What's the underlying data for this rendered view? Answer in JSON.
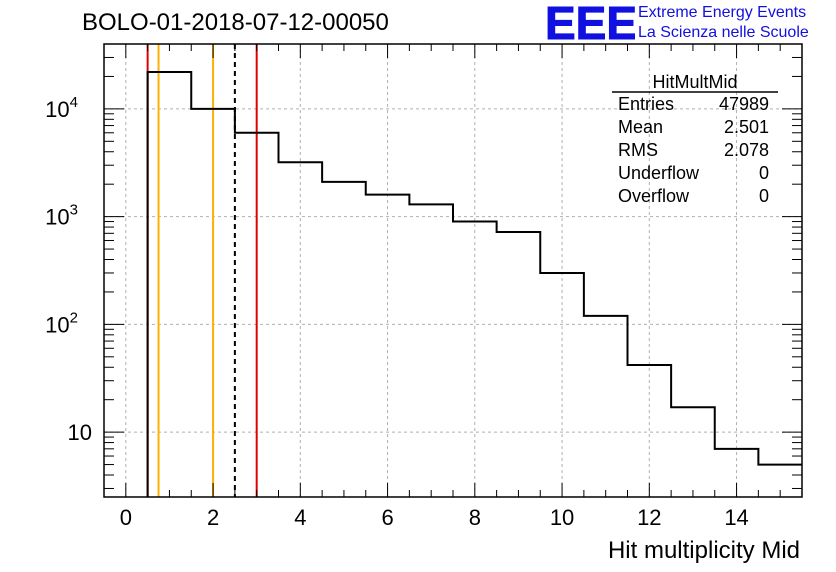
{
  "title": "BOLO-01-2018-07-12-00050",
  "logo": {
    "mark": "EEE",
    "line1": "Extreme Energy Events",
    "line2": "La Scienza nelle Scuole",
    "color": "#1010e0"
  },
  "stats": {
    "name": "HitMultMid",
    "rows": [
      {
        "label": "Entries",
        "value": "47989"
      },
      {
        "label": "Mean",
        "value": "2.501"
      },
      {
        "label": "RMS",
        "value": "2.078"
      },
      {
        "label": "Underflow",
        "value": "0"
      },
      {
        "label": "Overflow",
        "value": "0"
      }
    ]
  },
  "chart_data": {
    "type": "histogram",
    "xlabel": "Hit multiplicity Mid",
    "ylabel": "",
    "xlim": [
      -0.5,
      15.5
    ],
    "ylim": [
      2.5,
      40000
    ],
    "yscale": "log",
    "grid": true,
    "bin_edges": [
      0.5,
      1.5,
      2.5,
      3.5,
      4.5,
      5.5,
      6.5,
      7.5,
      8.5,
      9.5,
      10.5,
      11.5,
      12.5,
      13.5,
      14.5,
      15.5
    ],
    "values": [
      22000,
      10000,
      6000,
      3200,
      2100,
      1600,
      1300,
      900,
      720,
      300,
      120,
      42,
      17,
      7,
      5
    ],
    "x_ticks": [
      0,
      2,
      4,
      6,
      8,
      10,
      12,
      14
    ],
    "x_tick_labels": [
      "0",
      "2",
      "4",
      "6",
      "8",
      "10",
      "12",
      "14"
    ],
    "y_ticks": [
      10,
      100,
      1000,
      10000
    ],
    "y_tick_labels": [
      {
        "base": "10",
        "exp": ""
      },
      {
        "base": "10",
        "exp": "2"
      },
      {
        "base": "10",
        "exp": "3"
      },
      {
        "base": "10",
        "exp": "4"
      }
    ],
    "vlines": [
      {
        "x": 0.5,
        "color": "#e00000",
        "style": "solid"
      },
      {
        "x": 3.0,
        "color": "#e00000",
        "style": "solid"
      },
      {
        "x": 0.75,
        "color": "#ffb000",
        "style": "solid"
      },
      {
        "x": 2.0,
        "color": "#ffb000",
        "style": "solid"
      },
      {
        "x": 2.5,
        "color": "#000000",
        "style": "dashed"
      }
    ],
    "line_color": "#000000",
    "grid_color": "#b0b0b0"
  }
}
